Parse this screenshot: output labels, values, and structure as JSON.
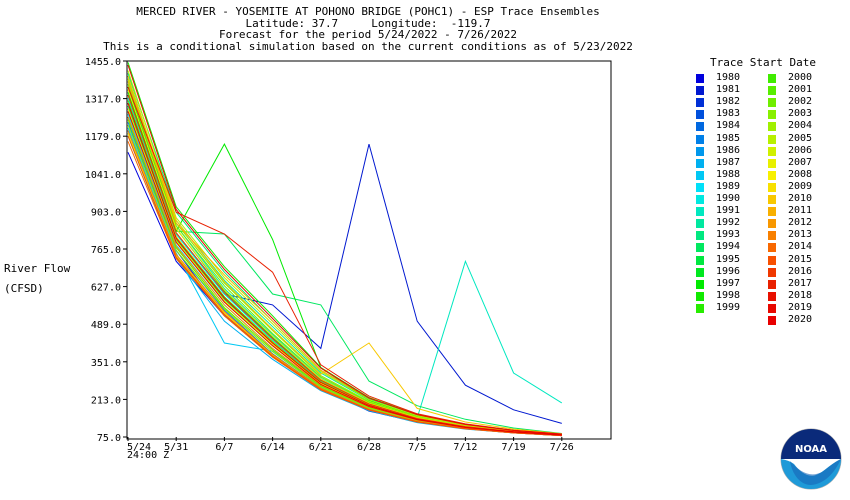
{
  "titles": {
    "line1": "MERCED RIVER - YOSEMITE AT POHONO BRIDGE (POHC1) - ESP Trace Ensembles",
    "line2": "Latitude: 37.7     Longitude:  -119.7",
    "line3": "Forecast for the period 5/24/2022 - 7/26/2022",
    "line4": "This is a conditional simulation based on the current conditions as of 5/23/2022"
  },
  "ylabel": {
    "line1": "River Flow",
    "line2": "(CFSD)"
  },
  "legend_title": "Trace Start Date",
  "time_label": "24:00 Z",
  "logo_text": "NOAA",
  "chart_data": {
    "type": "line",
    "ylim": [
      75.0,
      1455.0
    ],
    "yticks": [
      "1455.0",
      "1317.0",
      "1179.0",
      "1041.0",
      "903.0",
      "765.0",
      "627.0",
      "489.0",
      "351.0",
      "213.0",
      "75.0"
    ],
    "xticks": [
      "5/24",
      "5/31",
      "6/7",
      "6/14",
      "6/21",
      "6/28",
      "7/5",
      "7/12",
      "7/19",
      "7/26"
    ],
    "x": [
      "5/24",
      "5/31",
      "6/7",
      "6/14",
      "6/21",
      "6/28",
      "7/5",
      "7/12",
      "7/19",
      "7/26"
    ],
    "legend_placement": "right",
    "series": [
      {
        "name": "1980",
        "color": "#0000dd",
        "values": [
          1120,
          720,
          520,
          380,
          250,
          185,
          140,
          110,
          92,
          82
        ]
      },
      {
        "name": "1981",
        "color": "#0018d0",
        "values": [
          1280,
          820,
          600,
          560,
          400,
          1150,
          500,
          265,
          175,
          125
        ]
      },
      {
        "name": "1982",
        "color": "#0030d6",
        "values": [
          1250,
          760,
          520,
          370,
          255,
          170,
          130,
          105,
          90,
          80
        ]
      },
      {
        "name": "1983",
        "color": "#0050dc",
        "values": [
          1300,
          820,
          600,
          440,
          280,
          200,
          150,
          120,
          98,
          84
        ]
      },
      {
        "name": "1984",
        "color": "#0068e0",
        "values": [
          1200,
          740,
          520,
          370,
          250,
          175,
          130,
          105,
          90,
          80
        ]
      },
      {
        "name": "1985",
        "color": "#0080e8",
        "values": [
          1230,
          760,
          540,
          380,
          255,
          178,
          132,
          106,
          91,
          81
        ]
      },
      {
        "name": "1986",
        "color": "#0098ec",
        "values": [
          1400,
          860,
          640,
          470,
          300,
          205,
          150,
          118,
          96,
          84
        ]
      },
      {
        "name": "1987",
        "color": "#00b0f0",
        "values": [
          1180,
          730,
          500,
          360,
          245,
          172,
          128,
          104,
          90,
          80
        ]
      },
      {
        "name": "1988",
        "color": "#00c8f4",
        "values": [
          1210,
          750,
          420,
          390,
          258,
          180,
          134,
          107,
          92,
          81
        ]
      },
      {
        "name": "1989",
        "color": "#00e0f8",
        "values": [
          1260,
          780,
          560,
          400,
          265,
          185,
          137,
          109,
          93,
          82
        ]
      },
      {
        "name": "1990",
        "color": "#00e8e0",
        "values": [
          1320,
          820,
          600,
          430,
          280,
          195,
          142,
          112,
          95,
          83
        ]
      },
      {
        "name": "1991",
        "color": "#00e8c0",
        "values": [
          1350,
          850,
          620,
          450,
          290,
          200,
          145,
          720,
          310,
          200
        ]
      },
      {
        "name": "1992",
        "color": "#00e8a0",
        "values": [
          1380,
          870,
          650,
          480,
          310,
          210,
          152,
          118,
          97,
          84
        ]
      },
      {
        "name": "1993",
        "color": "#00e880",
        "values": [
          1410,
          900,
          680,
          500,
          320,
          215,
          155,
          120,
          99,
          85
        ]
      },
      {
        "name": "1994",
        "color": "#00e860",
        "values": [
          1330,
          830,
          820,
          600,
          560,
          280,
          190,
          140,
          108,
          88
        ]
      },
      {
        "name": "1995",
        "color": "#00e840",
        "values": [
          1290,
          800,
          580,
          420,
          275,
          192,
          140,
          111,
          94,
          83
        ]
      },
      {
        "name": "1996",
        "color": "#00e820",
        "values": [
          1360,
          840,
          610,
          440,
          285,
          198,
          144,
          113,
          96,
          84
        ]
      },
      {
        "name": "1997",
        "color": "#00ea00",
        "values": [
          1340,
          830,
          1150,
          800,
          330,
          210,
          150,
          116,
          97,
          84
        ]
      },
      {
        "name": "1998",
        "color": "#10ea00",
        "values": [
          1450,
          920,
          700,
          520,
          330,
          220,
          158,
          122,
          100,
          86
        ]
      },
      {
        "name": "1999",
        "color": "#28ec00",
        "values": [
          1270,
          790,
          570,
          410,
          270,
          188,
          138,
          110,
          93,
          82
        ]
      },
      {
        "name": "2000",
        "color": "#40ec00",
        "values": [
          1310,
          810,
          590,
          425,
          278,
          193,
          141,
          112,
          95,
          83
        ]
      },
      {
        "name": "2001",
        "color": "#58ee00",
        "values": [
          1240,
          770,
          550,
          395,
          262,
          183,
          136,
          108,
          92,
          81
        ]
      },
      {
        "name": "2002",
        "color": "#70ee00",
        "values": [
          1370,
          850,
          630,
          455,
          295,
          203,
          147,
          115,
          96,
          84
        ]
      },
      {
        "name": "2003",
        "color": "#88f000",
        "values": [
          1220,
          760,
          545,
          388,
          258,
          181,
          134,
          107,
          91,
          81
        ]
      },
      {
        "name": "2004",
        "color": "#a0f000",
        "values": [
          1390,
          860,
          640,
          465,
          300,
          206,
          149,
          116,
          97,
          84
        ]
      },
      {
        "name": "2005",
        "color": "#b8f000",
        "values": [
          1420,
          880,
          660,
          490,
          315,
          212,
          153,
          119,
          98,
          85
        ]
      },
      {
        "name": "2006",
        "color": "#d0f000",
        "values": [
          1300,
          810,
          585,
          422,
          276,
          192,
          140,
          111,
          94,
          83
        ]
      },
      {
        "name": "2007",
        "color": "#e8f000",
        "values": [
          1190,
          740,
          530,
          375,
          252,
          176,
          131,
          105,
          90,
          80
        ]
      },
      {
        "name": "2008",
        "color": "#f8f000",
        "values": [
          1280,
          795,
          575,
          415,
          272,
          189,
          139,
          110,
          94,
          82
        ]
      },
      {
        "name": "2009",
        "color": "#f8e000",
        "values": [
          1350,
          840,
          615,
          445,
          288,
          199,
          145,
          114,
          96,
          84
        ]
      },
      {
        "name": "2010",
        "color": "#f8c800",
        "values": [
          1400,
          870,
          645,
          470,
          305,
          420,
          180,
          130,
          104,
          87
        ]
      },
      {
        "name": "2011",
        "color": "#f8b000",
        "values": [
          1380,
          860,
          670,
          500,
          320,
          218,
          157,
          121,
          99,
          85
        ]
      },
      {
        "name": "2012",
        "color": "#f89800",
        "values": [
          1250,
          775,
          560,
          400,
          266,
          186,
          137,
          109,
          93,
          82
        ]
      },
      {
        "name": "2013",
        "color": "#f88000",
        "values": [
          1200,
          745,
          535,
          378,
          254,
          177,
          132,
          106,
          91,
          81
        ]
      },
      {
        "name": "2014",
        "color": "#f86800",
        "values": [
          1160,
          730,
          520,
          368,
          248,
          174,
          130,
          105,
          90,
          80
        ]
      },
      {
        "name": "2015",
        "color": "#f85000",
        "values": [
          1180,
          735,
          525,
          372,
          250,
          175,
          131,
          105,
          90,
          80
        ]
      },
      {
        "name": "2016",
        "color": "#f03800",
        "values": [
          1330,
          825,
          605,
          435,
          283,
          196,
          143,
          113,
          95,
          83
        ]
      },
      {
        "name": "2017",
        "color": "#e82000",
        "values": [
          1360,
          900,
          820,
          680,
          340,
          225,
          160,
          123,
          100,
          86
        ]
      },
      {
        "name": "2018",
        "color": "#e81000",
        "values": [
          1270,
          790,
          570,
          410,
          268,
          187,
          138,
          110,
          93,
          82
        ]
      },
      {
        "name": "2019",
        "color": "#e80800",
        "values": [
          1440,
          910,
          690,
          510,
          328,
          218,
          157,
          121,
          99,
          85
        ]
      },
      {
        "name": "2020",
        "color": "#e80000",
        "values": [
          1300,
          805,
          585,
          420,
          275,
          191,
          140,
          111,
          94,
          82
        ]
      }
    ]
  }
}
